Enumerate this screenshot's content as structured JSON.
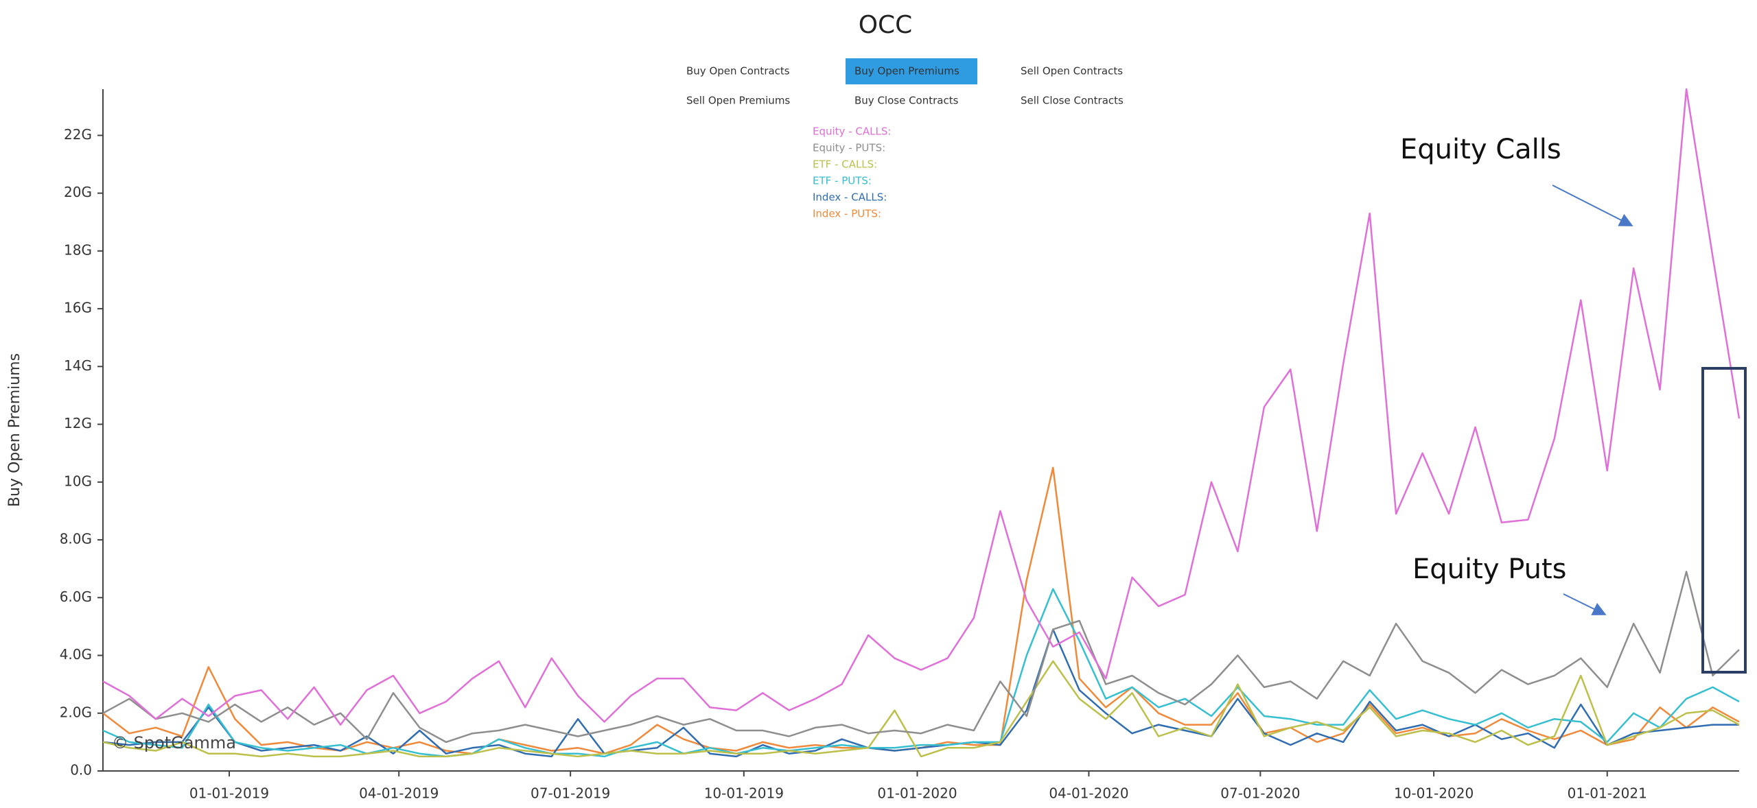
{
  "header": {
    "title": "OCC",
    "buttons": [
      "Buy Open Contracts",
      "Buy Open Premiums",
      "Sell Open Contracts",
      "Sell Open Premiums",
      "Buy Close Contracts",
      "Sell Close Contracts"
    ],
    "selected": 1
  },
  "chart_data": {
    "type": "line",
    "ylabel": "Buy Open Premiums",
    "watermark": "© SpotGamma",
    "annotations": [
      "Equity Calls",
      "Equity Puts"
    ],
    "x": [
      "2018-10-26",
      "2018-11-09",
      "2018-11-23",
      "2018-12-07",
      "2018-12-21",
      "2019-01-04",
      "2019-01-18",
      "2019-02-01",
      "2019-02-15",
      "2019-03-01",
      "2019-03-15",
      "2019-03-29",
      "2019-04-12",
      "2019-04-26",
      "2019-05-10",
      "2019-05-24",
      "2019-06-07",
      "2019-06-21",
      "2019-07-05",
      "2019-07-19",
      "2019-08-02",
      "2019-08-16",
      "2019-08-30",
      "2019-09-13",
      "2019-09-27",
      "2019-10-11",
      "2019-10-25",
      "2019-11-08",
      "2019-11-22",
      "2019-12-06",
      "2019-12-20",
      "2020-01-03",
      "2020-01-17",
      "2020-01-31",
      "2020-02-14",
      "2020-02-28",
      "2020-03-13",
      "2020-03-27",
      "2020-04-10",
      "2020-04-24",
      "2020-05-08",
      "2020-05-22",
      "2020-06-05",
      "2020-06-19",
      "2020-07-03",
      "2020-07-17",
      "2020-07-31",
      "2020-08-14",
      "2020-08-28",
      "2020-09-11",
      "2020-09-25",
      "2020-10-09",
      "2020-10-23",
      "2020-11-06",
      "2020-11-20",
      "2020-12-04",
      "2020-12-18",
      "2021-01-01",
      "2021-01-15",
      "2021-01-29",
      "2021-02-12",
      "2021-02-26",
      "2021-03-12"
    ],
    "xlim": [
      "2018-10-26",
      "2021-03-12"
    ],
    "xticks": [
      {
        "value": "2019-01-01",
        "label": "01-01-2019"
      },
      {
        "value": "2019-04-01",
        "label": "04-01-2019"
      },
      {
        "value": "2019-07-01",
        "label": "07-01-2019"
      },
      {
        "value": "2019-10-01",
        "label": "10-01-2019"
      },
      {
        "value": "2020-01-01",
        "label": "01-01-2020"
      },
      {
        "value": "2020-04-01",
        "label": "04-01-2020"
      },
      {
        "value": "2020-07-01",
        "label": "07-01-2020"
      },
      {
        "value": "2020-10-01",
        "label": "10-01-2020"
      },
      {
        "value": "2021-01-01",
        "label": "01-01-2021"
      }
    ],
    "ylim": [
      0,
      23.6
    ],
    "yticks": [
      {
        "value": 0,
        "label": "0.0"
      },
      {
        "value": 2,
        "label": "2.0G"
      },
      {
        "value": 4,
        "label": "4.0G"
      },
      {
        "value": 6,
        "label": "6.0G"
      },
      {
        "value": 8,
        "label": "8.0G"
      },
      {
        "value": 10,
        "label": "10G"
      },
      {
        "value": 12,
        "label": "12G"
      },
      {
        "value": 14,
        "label": "14G"
      },
      {
        "value": 16,
        "label": "16G"
      },
      {
        "value": 18,
        "label": "18G"
      },
      {
        "value": 20,
        "label": "20G"
      },
      {
        "value": 22,
        "label": "22G"
      }
    ],
    "series": [
      {
        "name": "Equity - CALLS:",
        "color": "#e06fd8",
        "values": [
          3.1,
          2.6,
          1.8,
          2.5,
          1.9,
          2.6,
          2.8,
          1.8,
          2.9,
          1.6,
          2.8,
          3.3,
          2.0,
          2.4,
          3.2,
          3.8,
          2.2,
          3.9,
          2.6,
          1.7,
          2.6,
          3.2,
          3.2,
          2.2,
          2.1,
          2.7,
          2.1,
          2.5,
          3.0,
          4.7,
          3.9,
          3.5,
          3.9,
          5.3,
          9.0,
          5.9,
          4.3,
          4.8,
          3.2,
          6.7,
          5.7,
          6.1,
          10.0,
          7.6,
          12.6,
          13.9,
          8.3,
          14.1,
          19.3,
          8.9,
          11.0,
          8.9,
          11.9,
          8.6,
          8.7,
          11.5,
          16.3,
          10.4,
          17.4,
          13.2,
          23.6,
          17.8,
          12.2
        ]
      },
      {
        "name": "Equity - PUTS:",
        "color": "#8e8e8e",
        "values": [
          2.0,
          2.5,
          1.8,
          2.0,
          1.7,
          2.3,
          1.7,
          2.2,
          1.6,
          2.0,
          1.1,
          2.7,
          1.5,
          1.0,
          1.3,
          1.4,
          1.6,
          1.4,
          1.2,
          1.4,
          1.6,
          1.9,
          1.6,
          1.8,
          1.4,
          1.4,
          1.2,
          1.5,
          1.6,
          1.3,
          1.4,
          1.3,
          1.6,
          1.4,
          3.1,
          1.9,
          4.9,
          5.2,
          3.0,
          3.3,
          2.7,
          2.3,
          3.0,
          4.0,
          2.9,
          3.1,
          2.5,
          3.8,
          3.3,
          5.1,
          3.8,
          3.4,
          2.7,
          3.5,
          3.0,
          3.3,
          3.9,
          2.9,
          5.1,
          3.4,
          6.9,
          3.3,
          4.2
        ]
      },
      {
        "name": "ETF - CALLS:",
        "color": "#bcc04a",
        "values": [
          1.0,
          0.8,
          0.7,
          1.0,
          0.6,
          0.6,
          0.5,
          0.6,
          0.5,
          0.5,
          0.6,
          0.7,
          0.5,
          0.5,
          0.6,
          0.8,
          0.7,
          0.6,
          0.5,
          0.6,
          0.7,
          0.6,
          0.6,
          0.7,
          0.6,
          0.6,
          0.7,
          0.6,
          0.7,
          0.8,
          2.1,
          0.5,
          0.8,
          0.8,
          1.0,
          2.4,
          3.8,
          2.5,
          1.8,
          2.7,
          1.2,
          1.5,
          1.2,
          3.0,
          1.2,
          1.5,
          1.7,
          1.4,
          2.2,
          1.2,
          1.4,
          1.3,
          1.0,
          1.4,
          0.9,
          1.2,
          3.3,
          0.9,
          1.2,
          1.5,
          2.0,
          2.1,
          1.6
        ]
      },
      {
        "name": "ETF - PUTS:",
        "color": "#35bfd0",
        "values": [
          1.4,
          1.0,
          0.9,
          0.8,
          2.3,
          1.0,
          0.8,
          0.7,
          0.8,
          0.9,
          0.6,
          0.8,
          0.6,
          0.5,
          0.6,
          1.1,
          0.8,
          0.6,
          0.6,
          0.5,
          0.8,
          1.0,
          0.6,
          0.8,
          0.6,
          0.8,
          0.7,
          0.8,
          0.9,
          0.8,
          0.8,
          0.9,
          0.9,
          1.0,
          1.0,
          4.0,
          6.3,
          4.5,
          2.5,
          2.9,
          2.2,
          2.5,
          1.9,
          2.9,
          1.9,
          1.8,
          1.6,
          1.6,
          2.8,
          1.8,
          2.1,
          1.8,
          1.6,
          2.0,
          1.5,
          1.8,
          1.7,
          1.0,
          2.0,
          1.5,
          2.5,
          2.9,
          2.4
        ]
      },
      {
        "name": "Index - CALLS:",
        "color": "#2f6db0",
        "values": [
          1.0,
          0.9,
          1.0,
          1.0,
          2.2,
          1.0,
          0.7,
          0.8,
          0.9,
          0.7,
          1.2,
          0.6,
          1.4,
          0.6,
          0.8,
          0.9,
          0.6,
          0.5,
          1.8,
          0.6,
          0.7,
          0.8,
          1.5,
          0.6,
          0.5,
          0.9,
          0.6,
          0.7,
          1.1,
          0.8,
          0.7,
          0.8,
          0.9,
          1.0,
          0.9,
          2.1,
          4.9,
          2.8,
          2.0,
          1.3,
          1.6,
          1.4,
          1.2,
          2.5,
          1.3,
          0.9,
          1.3,
          1.0,
          2.4,
          1.4,
          1.6,
          1.2,
          1.6,
          1.1,
          1.3,
          0.8,
          2.3,
          0.9,
          1.3,
          1.4,
          1.5,
          1.6,
          1.6
        ]
      },
      {
        "name": "Index - PUTS:",
        "color": "#f0893a",
        "values": [
          2.0,
          1.3,
          1.5,
          1.2,
          3.6,
          1.8,
          0.9,
          1.0,
          0.8,
          0.7,
          1.0,
          0.8,
          1.0,
          0.7,
          0.6,
          1.1,
          0.9,
          0.7,
          0.8,
          0.6,
          0.9,
          1.6,
          1.1,
          0.8,
          0.7,
          1.0,
          0.8,
          0.9,
          0.8,
          0.8,
          0.7,
          0.8,
          1.0,
          0.9,
          0.9,
          6.6,
          10.5,
          3.2,
          2.2,
          2.9,
          2.0,
          1.6,
          1.6,
          2.7,
          1.3,
          1.5,
          1.0,
          1.3,
          2.3,
          1.3,
          1.5,
          1.2,
          1.3,
          1.8,
          1.4,
          1.1,
          1.4,
          0.9,
          1.1,
          2.2,
          1.5,
          2.2,
          1.7
        ]
      }
    ]
  }
}
